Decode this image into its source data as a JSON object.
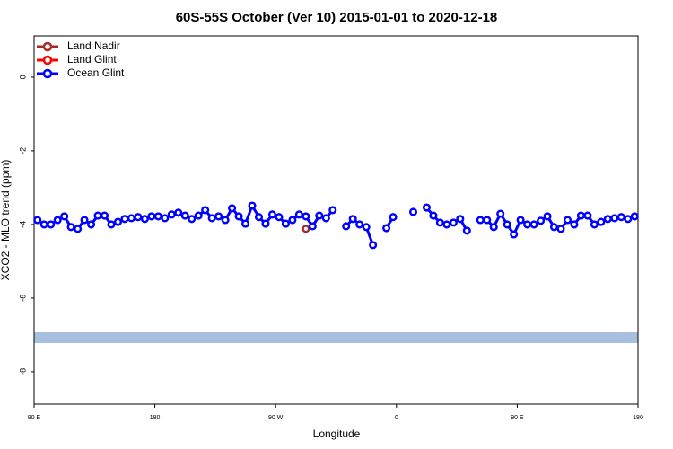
{
  "chart_data": {
    "type": "line",
    "title": "60S-55S October (Ver 10)   2015-01-01 to 2020-12-18",
    "x_label": "Longitude",
    "y_label": "XCO2 - MLO trend (ppm)",
    "xlim": [
      90,
      540
    ],
    "xticks": [
      {
        "value": 90,
        "label": "90 E"
      },
      180,
      {
        "value": 270,
        "label": "90 W"
      },
      {
        "value": 360,
        "label": "0"
      },
      {
        "value": 450,
        "label": "90 E"
      },
      {
        "value": 540,
        "label": "180"
      }
    ],
    "ylim": [
      -8.88,
      1.12
    ],
    "yticks": [
      0,
      -2,
      -4,
      -6,
      -8
    ],
    "legend": "top-left",
    "series": [
      {
        "name": "Land Nadir",
        "color": "#a52a2a",
        "x": [
          292.5
        ],
        "values": [
          -4.12
        ]
      },
      {
        "name": "Land Glint",
        "color": "#ff0000",
        "x": [],
        "values": []
      },
      {
        "name": "Ocean Glint",
        "color": "#0000ff",
        "x": [
          92.5,
          97.5,
          102.5,
          107.5,
          112.5,
          117.5,
          122.5,
          127.5,
          132.5,
          137.5,
          142.5,
          147.5,
          152.5,
          157.5,
          162.5,
          167.5,
          172.5,
          177.5,
          182.5,
          187.5,
          192.5,
          197.5,
          202.5,
          207.5,
          212.5,
          217.5,
          222.5,
          227.5,
          232.5,
          237.5,
          242.5,
          247.5,
          252.5,
          257.5,
          262.5,
          267.5,
          272.5,
          277.5,
          282.5,
          287.5,
          292.5,
          297.5,
          302.5,
          307.5,
          312.5,
          317.5,
          322.5,
          327.5,
          332.5,
          337.5,
          342.5,
          347.5,
          352.5,
          357.5,
          362.5,
          367.5,
          372.5,
          377.5,
          382.5,
          387.5,
          392.5,
          397.5,
          402.5,
          407.5,
          412.5,
          417.5,
          422.5,
          427.5,
          432.5,
          437.5,
          442.5,
          447.5,
          452.5,
          457.5,
          462.5,
          467.5,
          472.5,
          477.5,
          482.5,
          487.5,
          492.5,
          497.5,
          502.5,
          507.5,
          512.5,
          517.5,
          522.5,
          527.5,
          532.5,
          537.5
        ],
        "values": [
          -3.88,
          -4.0,
          -4.0,
          -3.88,
          -3.78,
          -4.07,
          -4.12,
          -3.88,
          -4.0,
          -3.76,
          -3.76,
          -4.0,
          -3.93,
          -3.85,
          -3.83,
          -3.8,
          -3.85,
          -3.78,
          -3.78,
          -3.83,
          -3.73,
          -3.68,
          -3.76,
          -3.85,
          -3.76,
          -3.61,
          -3.83,
          -3.78,
          -3.88,
          -3.56,
          -3.78,
          -3.98,
          -3.49,
          -3.8,
          -3.98,
          -3.73,
          -3.8,
          -3.98,
          -3.88,
          -3.73,
          -3.78,
          -4.05,
          -3.76,
          -3.83,
          -3.61,
          null,
          -4.05,
          -3.85,
          -4.0,
          -4.07,
          -4.56,
          null,
          -4.1,
          -3.8,
          null,
          null,
          -3.66,
          null,
          -3.54,
          -3.76,
          -3.95,
          -4.0,
          -3.95,
          -3.85,
          -4.17,
          null,
          -3.88,
          -3.88,
          -4.07,
          -3.71,
          -4.0,
          -4.27,
          -3.88,
          -4.0,
          -4.0,
          -3.9,
          -3.78,
          -4.07,
          -4.12,
          -3.88,
          -4.0,
          -3.76,
          -3.76,
          -4.0,
          -3.93,
          -3.85,
          -3.83,
          -3.8,
          -3.85,
          -3.78
        ]
      }
    ]
  }
}
